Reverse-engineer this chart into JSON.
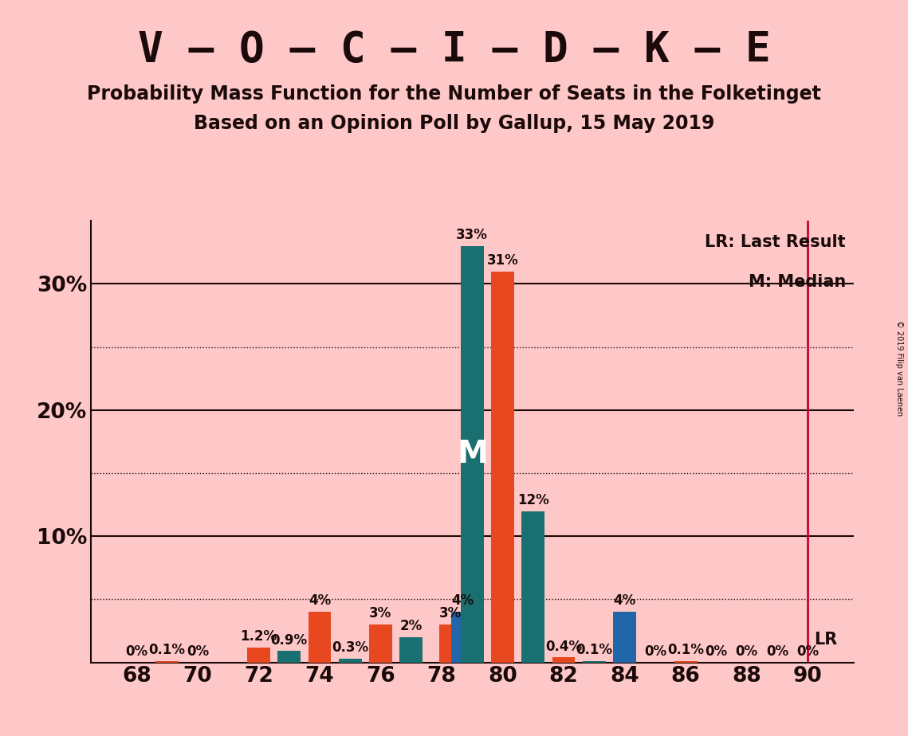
{
  "title": "V – O – C – I – D – K – E",
  "subtitle1": "Probability Mass Function for the Number of Seats in the Folketinget",
  "subtitle2": "Based on an Opinion Poll by Gallup, 15 May 2019",
  "copyright": "© 2019 Filip van Laenen",
  "legend_lr": "LR: Last Result",
  "legend_m": "M: Median",
  "background_color": "#ffc8c8",
  "bars": [
    {
      "seat": 68,
      "color": "#2266aa",
      "value": 0.0,
      "label": "0%",
      "label_side": "center"
    },
    {
      "seat": 69,
      "color": "#e84820",
      "value": 0.1,
      "label": "0.1%",
      "label_side": "center"
    },
    {
      "seat": 70,
      "color": "#2266aa",
      "value": 0.0,
      "label": "0%",
      "label_side": "center"
    },
    {
      "seat": 72,
      "color": "#e84820",
      "value": 1.2,
      "label": "1.2%",
      "label_side": "center"
    },
    {
      "seat": 73,
      "color": "#1a7070",
      "value": 0.9,
      "label": "0.9%",
      "label_side": "center"
    },
    {
      "seat": 74,
      "color": "#e84820",
      "value": 4.0,
      "label": "4%",
      "label_side": "center"
    },
    {
      "seat": 75,
      "color": "#1a7070",
      "value": 0.3,
      "label": "0.3%",
      "label_side": "center"
    },
    {
      "seat": 76,
      "color": "#e84820",
      "value": 3.0,
      "label": "3%",
      "label_side": "center"
    },
    {
      "seat": 77,
      "color": "#1a7070",
      "value": 2.0,
      "label": "2%",
      "label_side": "center"
    },
    {
      "seat": 78,
      "color": "#2266aa",
      "value": 3.0,
      "label": "3%",
      "label_side": "center"
    },
    {
      "seat": 78,
      "color": "#2266aa",
      "value": 4.0,
      "label": "4%",
      "label_side": "center"
    },
    {
      "seat": 79,
      "color": "#1a7070",
      "value": 33.0,
      "label": "33%",
      "label_side": "center",
      "is_median": true
    },
    {
      "seat": 80,
      "color": "#e84820",
      "value": 31.0,
      "label": "31%",
      "label_side": "center"
    },
    {
      "seat": 81,
      "color": "#1a7070",
      "value": 12.0,
      "label": "12%",
      "label_side": "center"
    },
    {
      "seat": 82,
      "color": "#e84820",
      "value": 0.4,
      "label": "0.4%",
      "label_side": "center"
    },
    {
      "seat": 83,
      "color": "#1a7070",
      "value": 0.1,
      "label": "0.1%",
      "label_side": "center"
    },
    {
      "seat": 84,
      "color": "#2266aa",
      "value": 4.0,
      "label": "4%",
      "label_side": "center"
    },
    {
      "seat": 85,
      "color": "#2266aa",
      "value": 0.0,
      "label": "0%",
      "label_side": "center"
    },
    {
      "seat": 86,
      "color": "#e84820",
      "value": 0.1,
      "label": "0.1%",
      "label_side": "center"
    },
    {
      "seat": 87,
      "color": "#2266aa",
      "value": 0.0,
      "label": "0%",
      "label_side": "center"
    },
    {
      "seat": 88,
      "color": "#2266aa",
      "value": 0.0,
      "label": "0%",
      "label_side": "center"
    },
    {
      "seat": 89,
      "color": "#2266aa",
      "value": 0.0,
      "label": "0%",
      "label_side": "center"
    },
    {
      "seat": 90,
      "color": "#2266aa",
      "value": 0.0,
      "label": "0%",
      "label_side": "center"
    }
  ],
  "xlim": [
    66.5,
    91.5
  ],
  "xticks": [
    68,
    70,
    72,
    74,
    76,
    78,
    80,
    82,
    84,
    86,
    88,
    90
  ],
  "ylim": [
    0,
    35
  ],
  "yticks": [
    0,
    10,
    20,
    30
  ],
  "ytick_labels": [
    "",
    "10%",
    "20%",
    "30%"
  ],
  "dotted_lines": [
    5,
    15,
    25
  ],
  "solid_lines": [
    10,
    20,
    30
  ],
  "lr_x": 90,
  "bar_width": 0.75,
  "teal_color": "#1a7070",
  "orange_color": "#e84820",
  "blue_color": "#2266aa",
  "lr_color": "#cc0033",
  "text_color": "#1a0a0a",
  "title_fontsize": 38,
  "subtitle_fontsize": 17,
  "label_fontsize": 12,
  "axis_fontsize": 19,
  "median_fontsize": 28
}
